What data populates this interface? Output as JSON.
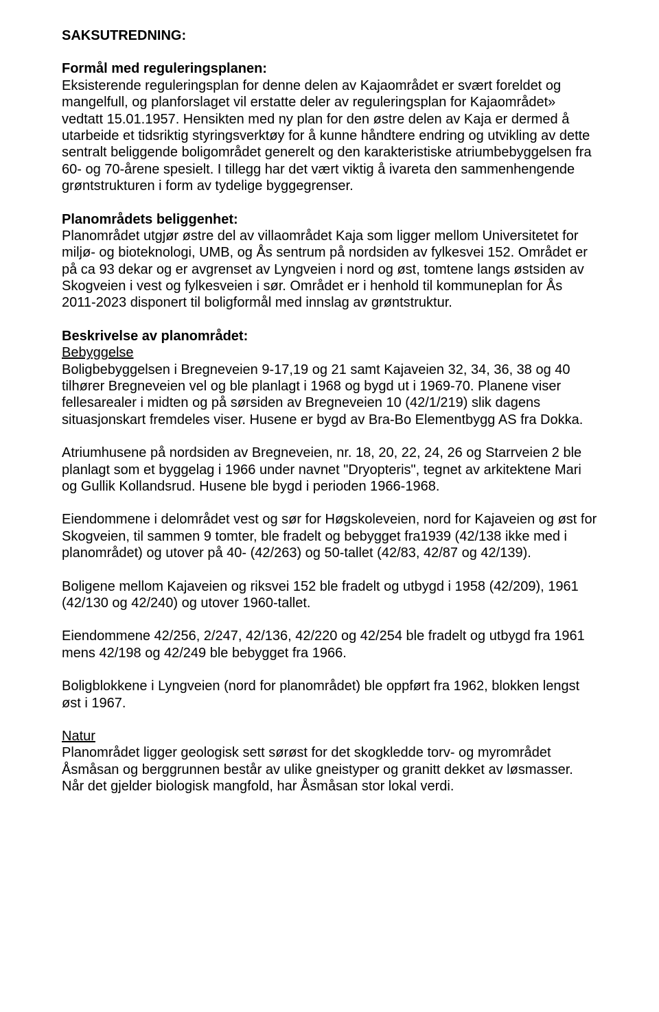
{
  "doc": {
    "title": "SAKSUTREDNING:",
    "section1": {
      "heading": "Formål med reguleringsplanen:",
      "p1": "Eksisterende reguleringsplan for denne delen av Kajaområdet er svært foreldet og mangelfull, og planforslaget vil erstatte deler av reguleringsplan for Kajaområdet» vedtatt 15.01.1957. Hensikten med ny plan for den østre delen av Kaja er dermed å utarbeide et tidsriktig styringsverktøy for å kunne håndtere endring og utvikling av dette sentralt beliggende boligområdet generelt og den karakteristiske atriumbebyggelsen fra 60- og 70-årene spesielt. I tillegg har det vært viktig å ivareta den sammenhengende grøntstrukturen i form av tydelige byggegrenser."
    },
    "section2": {
      "heading": "Planområdets beliggenhet:",
      "p1": "Planområdet utgjør østre del av villaområdet Kaja som ligger mellom Universitetet for miljø- og bioteknologi, UMB, og Ås sentrum på nordsiden av fylkesvei 152. Området er på ca 93 dekar og er avgrenset av Lyngveien i nord og øst, tomtene langs østsiden av Skogveien i vest og fylkesveien i sør. Området er i henhold til kommuneplan for Ås 2011-2023 disponert til boligformål med innslag av grøntstruktur."
    },
    "section3": {
      "heading": "Beskrivelse av planområdet:",
      "sub1": "Bebyggelse",
      "p1": "Boligbebyggelsen i Bregneveien 9-17,19 og 21 samt Kajaveien 32, 34, 36, 38 og 40 tilhører Bregneveien vel og ble planlagt i 1968 og bygd ut i 1969-70. Planene viser fellesarealer i midten og på sørsiden av Bregneveien 10 (42/1/219) slik dagens situasjonskart fremdeles viser. Husene er bygd av Bra-Bo Elementbygg AS fra Dokka.",
      "p2": "Atriumhusene på nordsiden av Bregneveien, nr. 18, 20, 22, 24, 26 og Starrveien 2 ble planlagt som et byggelag i 1966 under navnet \"Dryopteris\", tegnet av arkitektene Mari og Gullik Kollandsrud. Husene ble bygd i perioden 1966-1968.",
      "p3": "Eiendommene i delområdet vest og sør for Høgskoleveien, nord for Kajaveien og øst for Skogveien, til sammen 9 tomter, ble fradelt og bebygget fra1939 (42/138 ikke med i planområdet) og utover på 40- (42/263) og 50-tallet (42/83, 42/87 og 42/139).",
      "p4": "Boligene mellom Kajaveien og riksvei 152 ble fradelt og utbygd i 1958 (42/209), 1961 (42/130 og 42/240) og utover 1960-tallet.",
      "p5": "Eiendommene 42/256, 2/247, 42/136, 42/220 og 42/254 ble fradelt og utbygd fra 1961 mens 42/198 og 42/249 ble bebygget fra 1966.",
      "p6": "Boligblokkene i Lyngveien (nord for planområdet) ble oppført fra 1962, blokken lengst øst i 1967.",
      "sub2": "Natur",
      "p7": "Planområdet ligger geologisk sett sørøst for det skogkledde torv- og myrområdet Åsmåsan og berggrunnen består av ulike gneistyper og granitt dekket av løsmasser. Når det gjelder biologisk mangfold, har Åsmåsan stor lokal verdi."
    }
  }
}
